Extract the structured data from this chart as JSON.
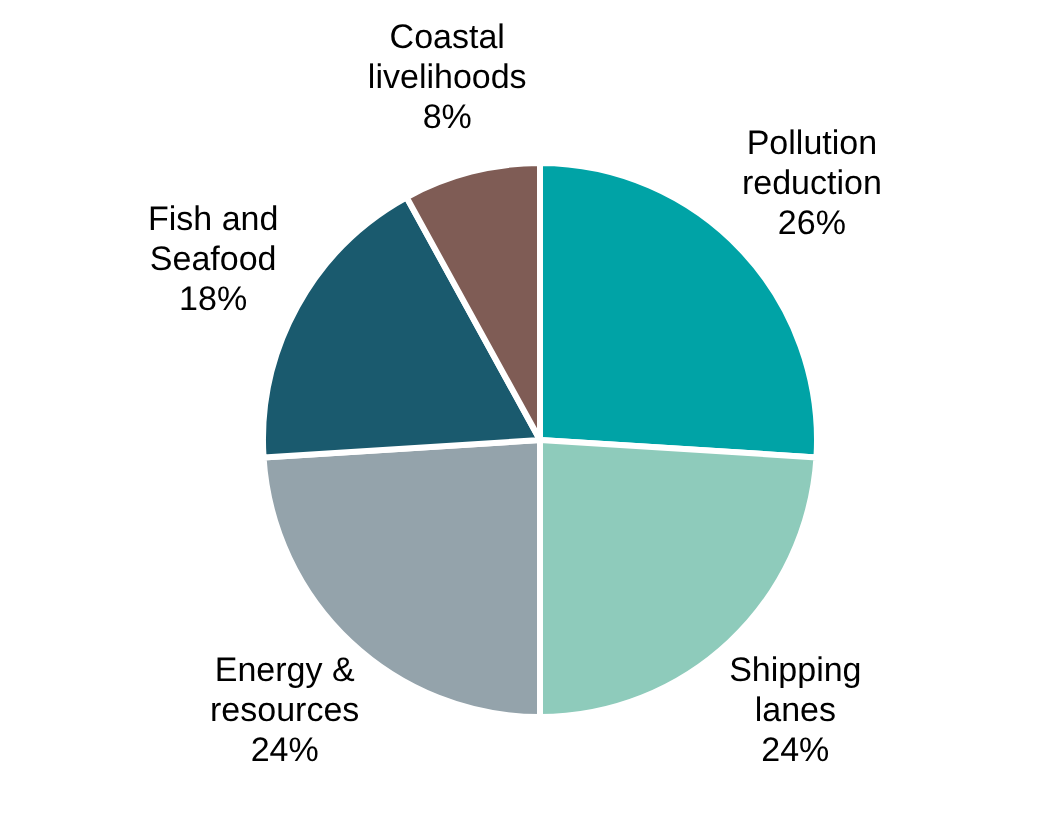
{
  "chart_data": {
    "type": "pie",
    "categories": [
      "Pollution reduction",
      "Shipping lanes",
      "Energy & resources",
      "Fish and Seafood",
      "Coastal livelihoods"
    ],
    "values": [
      26,
      24,
      24,
      18,
      8
    ],
    "colors": [
      "#00a3a6",
      "#8ecbbb",
      "#94a3ab",
      "#1a5a6e",
      "#7f5c55"
    ],
    "value_labels": [
      "26%",
      "24%",
      "24%",
      "18%",
      "8%"
    ],
    "legend": false
  }
}
